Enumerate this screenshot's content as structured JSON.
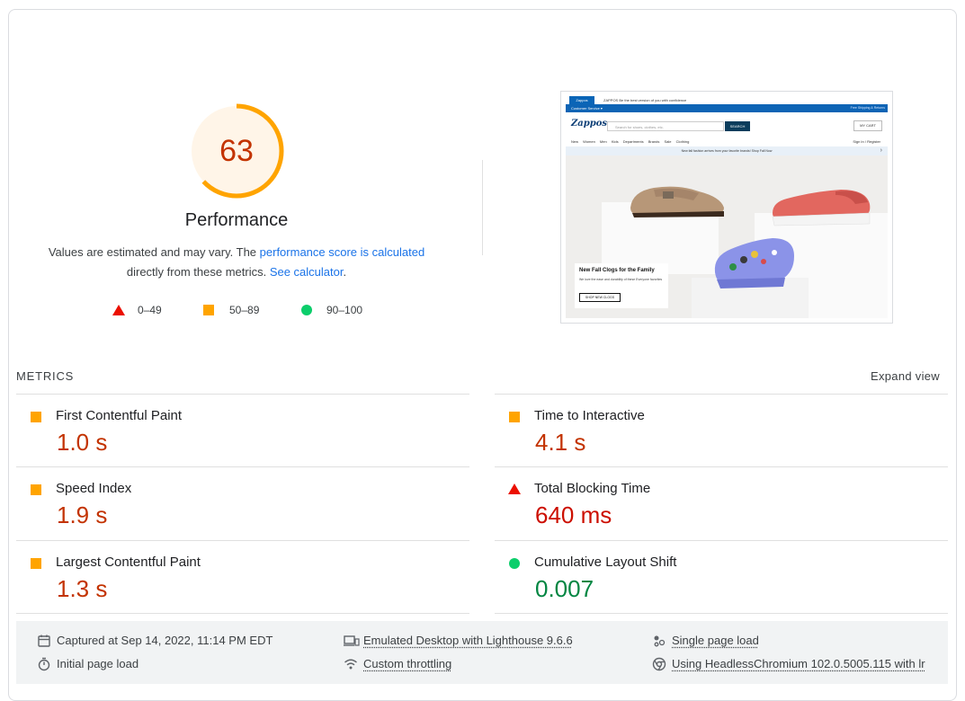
{
  "performance": {
    "score": "63",
    "score_value": 63,
    "title": "Performance",
    "desc_part1": "Values are estimated and may vary. The ",
    "desc_link1": "performance score is calculated",
    "desc_part2": "directly from these metrics. ",
    "desc_link2": "See calculator",
    "desc_end": ".",
    "colors": {
      "average": "#ffa400",
      "average_text": "#c33300",
      "fail": "#eb0f00",
      "pass": "#0cce6b"
    }
  },
  "legend": [
    {
      "range": "0–49",
      "shape": "triangle-icon"
    },
    {
      "range": "50–89",
      "shape": "square-icon"
    },
    {
      "range": "90–100",
      "shape": "circle-icon"
    }
  ],
  "screenshot": {
    "topbar_tab": "Zappos",
    "topbar_msg": "ZAPPOS  Be the best version of you with confidence",
    "customer_service": "Customer Service ▾",
    "promo": "Free Shipping & Returns",
    "logo": "Zappos",
    "search_placeholder": "Search for shoes, clothes, etc.",
    "search_button": "SEARCH",
    "cart": "MY CART",
    "nav": "New  Women  Men  Kids  Departments  Brands  Sale  Clothing",
    "sign_in": "Sign In / Register",
    "notice": "New fall fashion arrives from your favorite brands!  Shop Fall Now",
    "hero_title": "New Fall Clogs for the Family",
    "hero_text": "We love the ease and durability of these Everyone favorites",
    "hero_button": "SHOP NEW CLOGS"
  },
  "metrics": {
    "label": "METRICS",
    "expand_label": "Expand view",
    "items": [
      {
        "title": "First Contentful Paint",
        "value": "1.0 s",
        "status": "average"
      },
      {
        "title": "Time to Interactive",
        "value": "4.1 s",
        "status": "average"
      },
      {
        "title": "Speed Index",
        "value": "1.9 s",
        "status": "average"
      },
      {
        "title": "Total Blocking Time",
        "value": "640 ms",
        "status": "fail"
      },
      {
        "title": "Largest Contentful Paint",
        "value": "1.3 s",
        "status": "average"
      },
      {
        "title": "Cumulative Layout Shift",
        "value": "0.007",
        "status": "pass"
      }
    ]
  },
  "footer": {
    "captured": "Captured at Sep 14, 2022, 11:14 PM EDT",
    "initial_load": "Initial page load",
    "emulated": "Emulated Desktop with Lighthouse 9.6.6",
    "throttling": "Custom throttling",
    "single_load": "Single page load",
    "browser": "Using HeadlessChromium 102.0.5005.115 with lr"
  }
}
